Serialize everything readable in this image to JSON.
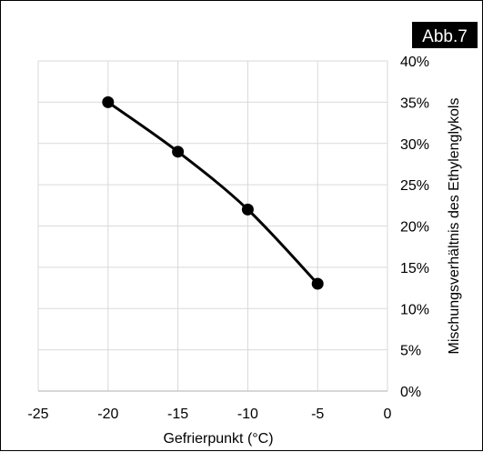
{
  "badge": "Abb.7",
  "chart_data": {
    "type": "line",
    "title": "",
    "xlabel": "Gefrierpunkt (°C)",
    "ylabel": "Mischungsverhältnis des Ethylenglykols",
    "xlim": [
      -25,
      0
    ],
    "ylim": [
      0,
      40
    ],
    "x_ticks": [
      -25,
      -20,
      -15,
      -10,
      -5,
      0
    ],
    "x_tick_labels": [
      "-25",
      "-20",
      "-15",
      "-10",
      "-5",
      "0"
    ],
    "y_ticks": [
      0,
      5,
      10,
      15,
      20,
      25,
      30,
      35,
      40
    ],
    "y_tick_labels": [
      "0%",
      "5%",
      "10%",
      "15%",
      "20%",
      "25%",
      "30%",
      "35%",
      "40%"
    ],
    "y_axis_side": "right",
    "grid": true,
    "legend": "none",
    "line_color": "#000000",
    "marker_color": "#000000",
    "grid_color": "#d9d9d9",
    "series": [
      {
        "x": [
          -20,
          -15,
          -10,
          -5
        ],
        "values": [
          35,
          29,
          22,
          13
        ]
      }
    ]
  }
}
